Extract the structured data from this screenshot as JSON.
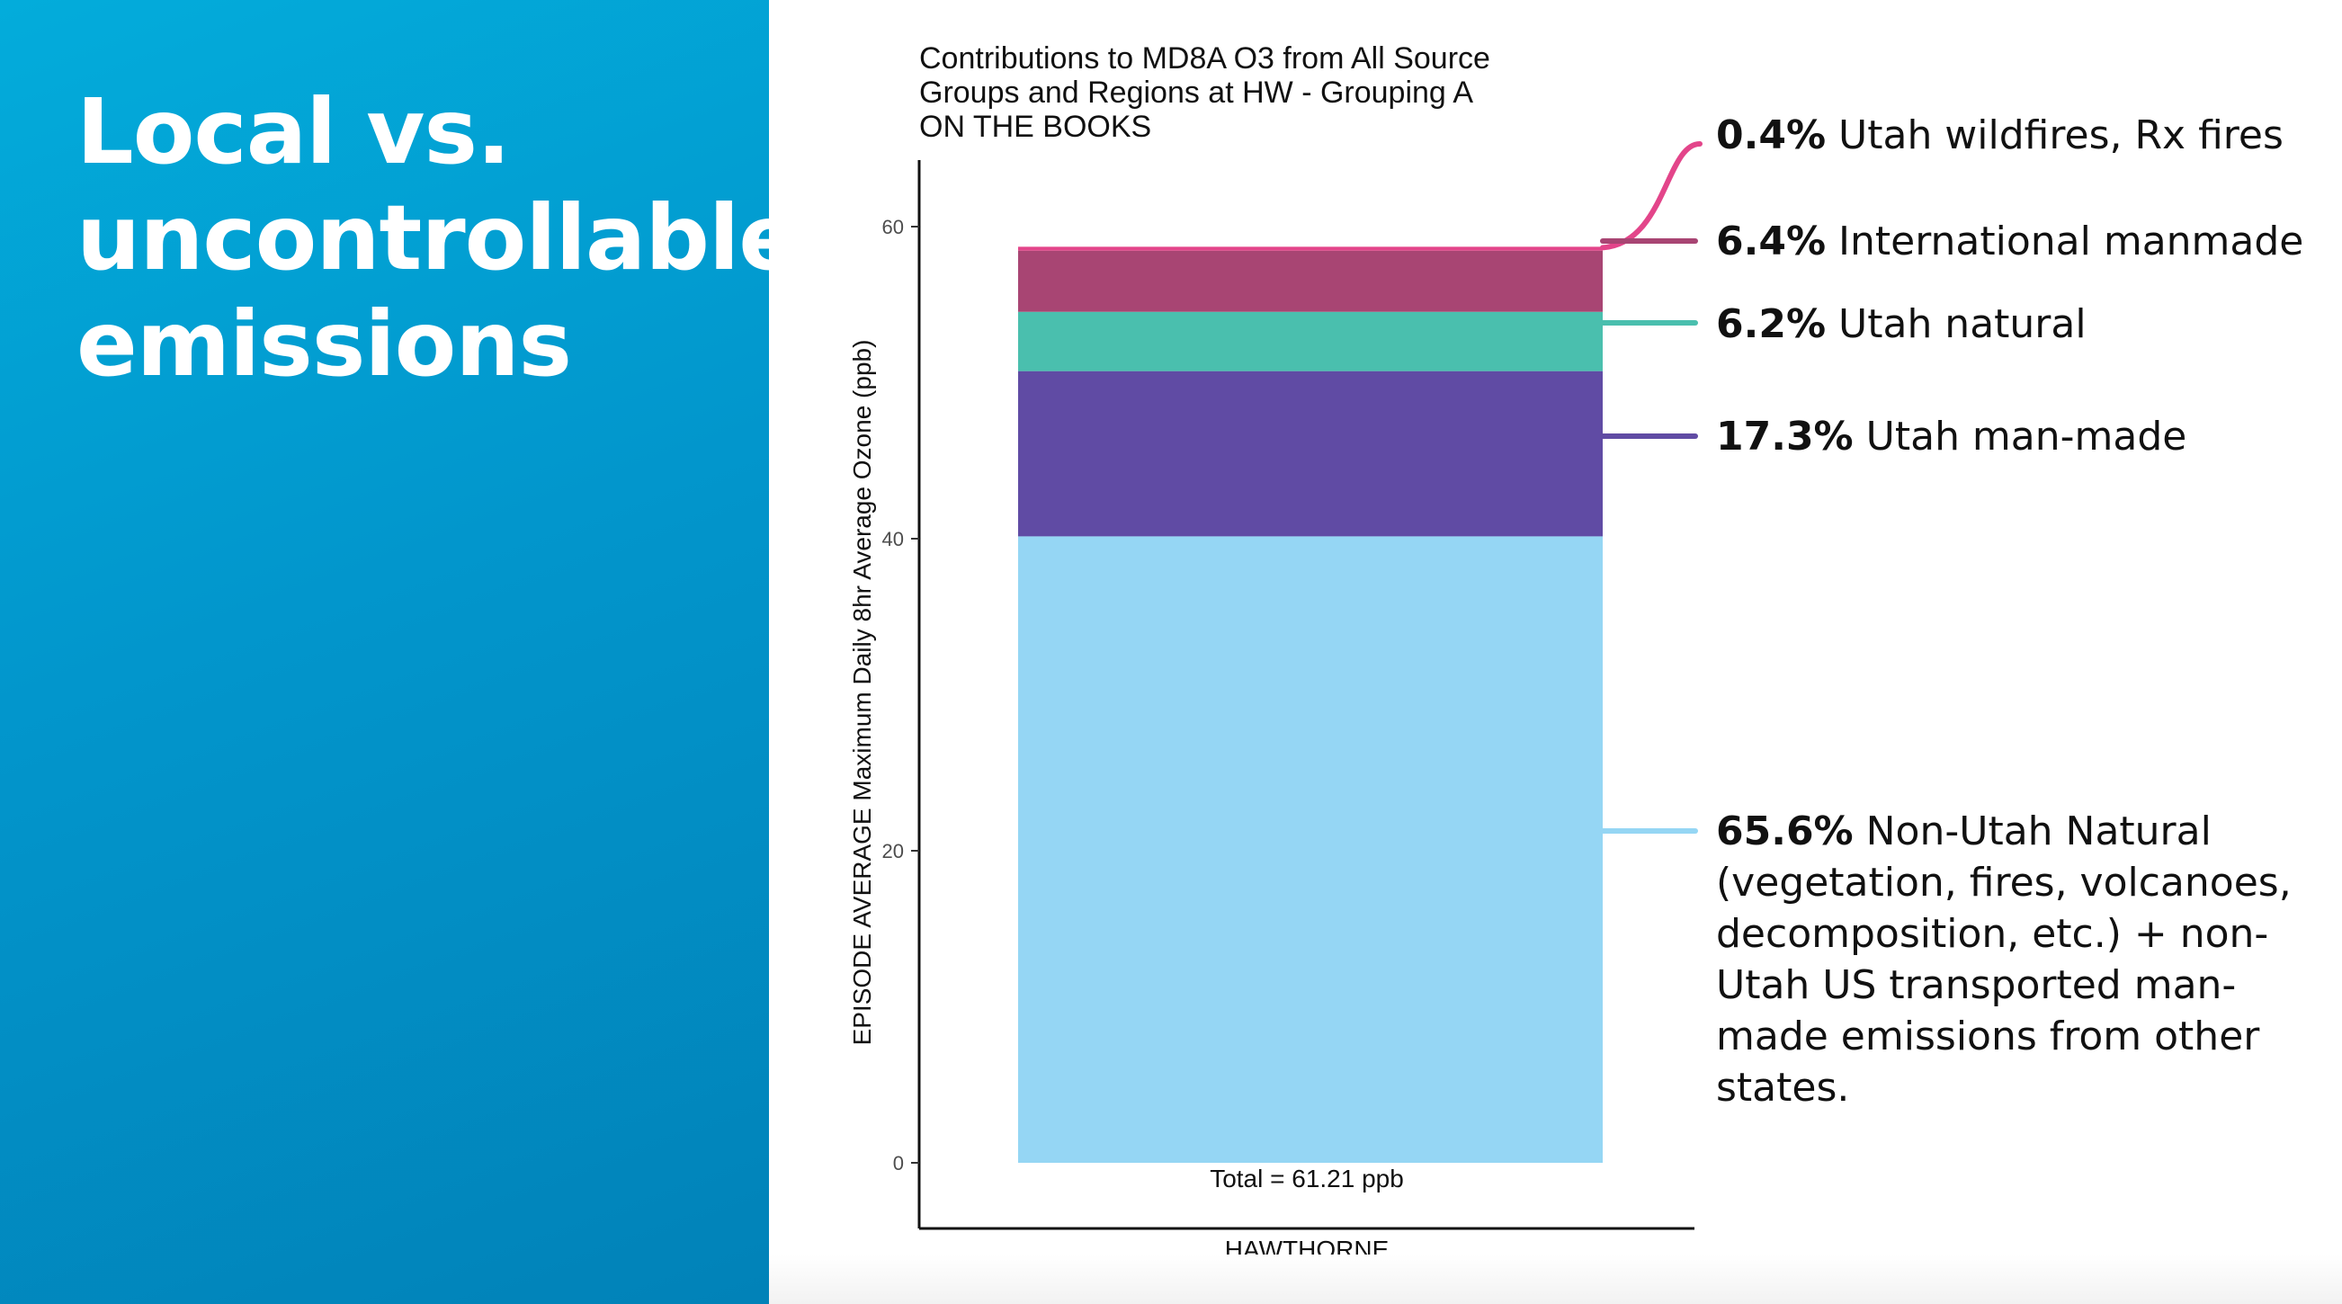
{
  "slide": {
    "title": "Local vs. uncontrollable emissions"
  },
  "colors": {
    "panel_blue": "#02a0d4",
    "non_utah_natural": "#95d6f4",
    "utah_man_made": "#604ba4",
    "utah_natural": "#4abfae",
    "international_manmade": "#a84573",
    "utah_wildfires": "#e3458a"
  },
  "chart_data": {
    "type": "bar",
    "stacked": true,
    "title": "Contributions to MD8A O3 from All Source\nGroups and Regions at HW - Grouping A\nON THE BOOKS",
    "xlabel": "HAWTHORNE",
    "ylabel": "EPISODE AVERAGE Maximum Daily 8hr Average Ozone (ppb)",
    "ylim": [
      0,
      64
    ],
    "yticks": [
      0,
      20,
      40,
      60
    ],
    "total_label": "Total = 61.21 ppb",
    "grid": false,
    "categories": [
      "HAWTHORNE"
    ],
    "series": [
      {
        "values": [
          40.15
        ],
        "color": "#95d6f4"
      },
      {
        "values": [
          10.59
        ],
        "color": "#604ba4"
      },
      {
        "values": [
          3.8
        ],
        "color": "#4abfae"
      },
      {
        "values": [
          3.92
        ],
        "color": "#a84573"
      },
      {
        "values": [
          0.25
        ],
        "color": "#e3458a"
      }
    ]
  },
  "annotations": [
    {
      "pct": "0.4%",
      "text": " Utah wildfires, Rx fires",
      "color": "#e3458a"
    },
    {
      "pct": "6.4%",
      "text": " International manmade",
      "color": "#a84573"
    },
    {
      "pct": "6.2%",
      "text": " Utah natural",
      "color": "#4abfae"
    },
    {
      "pct": "17.3%",
      "text": " Utah man-made",
      "color": "#604ba4"
    },
    {
      "pct": "65.6%",
      "text": " Non-Utah Natural (vegetation, fires, volcanoes, decomposition, etc.) + non-Utah US transported man-made emissions from other states.",
      "color": "#95d6f4"
    }
  ]
}
